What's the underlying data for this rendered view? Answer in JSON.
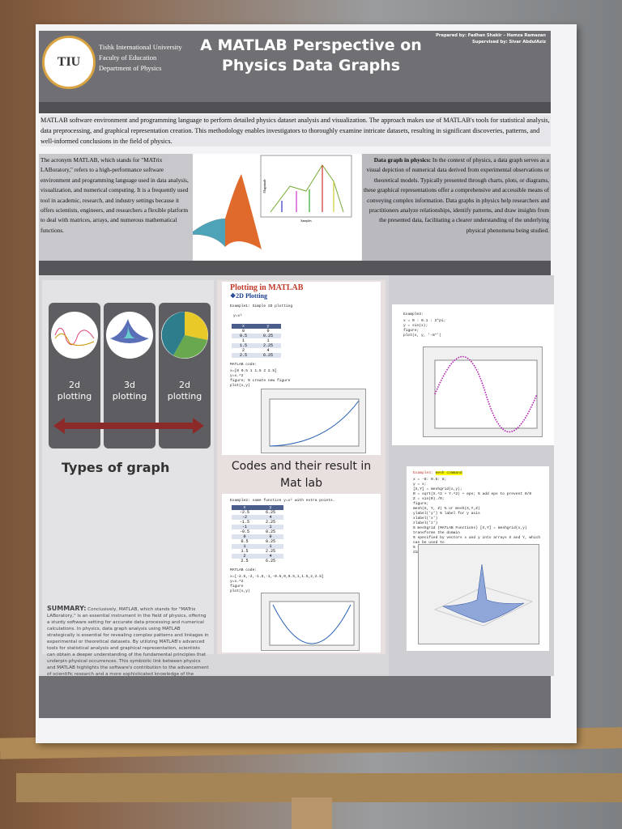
{
  "header": {
    "logo": "TIU",
    "institution": [
      "Tishk International University",
      "Faculty of Education",
      "Department of Physics"
    ],
    "title": [
      "A MATLAB Perspective on",
      "Physics Data Graphs"
    ],
    "credits": [
      "Prepared by: Fadhan Shakir – Hamza Ramazan",
      "Supervised by: Sivar AbdulAziz"
    ]
  },
  "intro": "MATLAB software environment and programming language to perform detailed physics dataset analysis and visualization. The approach makes use of MATLAB's tools for statistical analysis, data preprocessing, and graphical representation creation. This methodology enables investigators to thoroughly examine intricate datasets, resulting in significant discoveries, patterns, and well-informed conclusions in the field of physics.",
  "matlab_desc": "The acronym MATLAB, which stands for \"MATrix LABoratory,\" refers to a high-performance software environment and programming language used in data analysis, visualization, and numerical computing. It is a frequently used tool in academic, research, and industry settings because it offers scientists, engineers, and researchers a flexible platform to deal with matrices, arrays, and numerous mathematical functions.",
  "sample_plot": {
    "x_label": "Samples",
    "y_label": "Magnitude"
  },
  "graph_desc": {
    "label": "Data graph in physics:",
    "text": " In the context of physics, a data graph serves as a visual depiction of numerical data derived from experimental observations or theoretical models. Typically presented through charts, plots, or diagrams, these graphical representations offer a comprehensive and accessible means of conveying complex information. Data graphs in physics help researchers and practitioners analyze relationships, identify patterns, and draw insights from the presented data, facilitating a clearer understanding of the underlying physical phenomena being studied."
  },
  "types": {
    "items": [
      "2d plotting",
      "3d plotting",
      "2d plotting"
    ],
    "heading": "Types of graph"
  },
  "summary": {
    "label": "SUMMARY:",
    "text": " Conclusively, MATLAB, which stands for \"MATrix LABoratory,\" is an essential instrument in the field of physics, offering a sturdy software setting for accurate data processing and numerical calculations. In physics, data graph analysis using MATLAB strategically is essential for revealing complex patterns and linkages in experimental or theoretical datasets. By utilizing MATLAB's advanced tools for statistical analysis and graphical representation, scientists can obtain a deeper understanding of the fundamental principles that underpin physical occurrences. This symbiotic link between physics and MATLAB highlights the software's contribution to the advancement of scientific research and a more sophisticated knowledge of the intricate dynamics present in the physical universe."
  },
  "codes": {
    "heading": "Plotting in MATLAB",
    "subheading": "❖2D Plotting",
    "middle_heading": "Codes and their result in Mat lab",
    "example1": {
      "title": "Example1: Simple 2D plotting",
      "equation": "y=x²",
      "table": {
        "header": [
          "x",
          "y"
        ],
        "rows": [
          [
            "0",
            "0"
          ],
          [
            "0.5",
            "0.25"
          ],
          [
            "1",
            "1"
          ],
          [
            "1.5",
            "2.25"
          ],
          [
            "2",
            "4"
          ],
          [
            "2.5",
            "6.25"
          ]
        ]
      },
      "code_label": "MATLAB code:",
      "code": [
        "x=[0 0.5 1 1.5 2 2.5]",
        "y=x.^2",
        "figure; % create new figure",
        "plot(x,y)"
      ]
    },
    "example2": {
      "title": "Example2: same function y=x² with extra points.",
      "table": {
        "header": [
          "x",
          "y"
        ],
        "rows": [
          [
            "-2.5",
            "6.25"
          ],
          [
            "-2",
            "4"
          ],
          [
            "-1.5",
            "2.25"
          ],
          [
            "-1",
            "1"
          ],
          [
            "-0.5",
            "0.25"
          ],
          [
            "0",
            "0"
          ],
          [
            "0.5",
            "0.25"
          ],
          [
            "1",
            "1"
          ],
          [
            "1.5",
            "2.25"
          ],
          [
            "2",
            "4"
          ],
          [
            "2.5",
            "6.25"
          ]
        ]
      },
      "code_label": "MATLAB code:",
      "code": [
        "x=[-2.5,-2,-1.5,-1,-0.5,0,0.5,1,1.5,2,2.5]",
        "y=x.^2",
        "figure",
        "plot(x,y)"
      ]
    },
    "example3": {
      "title": "Example3:",
      "code": [
        "x = 0 : 0.1 : 2*pi;",
        "y = sin(x);",
        "figure;",
        "plot(x, y, '-m*')"
      ]
    },
    "example4": {
      "title": "Example4:",
      "command": "mesh command",
      "code": [
        "x = -8: 0.5: 8;",
        "y = x;",
        "[X,Y] = meshgrid(x,y);",
        "R = sqrt(X.^2 + Y.^2) + eps; % add eps to prevent 0/0",
        "Z = sin(R)./R;",
        "figure;",
        "mesh(X, Y, Z) % or mesh(X,Y,Z)",
        "ylabel('y') % label for y axis",
        "xlabel('x')",
        "zlabel('z')",
        "% meshgrid (MATLAB Functions) [X,Y] = meshgrid(x,y) transforms the domain",
        "% specified by vectors x and y into arrays X and Y, which can be used to",
        "% evaluate functions of two variables and three-dimensional mesh/surface plots."
      ]
    }
  }
}
